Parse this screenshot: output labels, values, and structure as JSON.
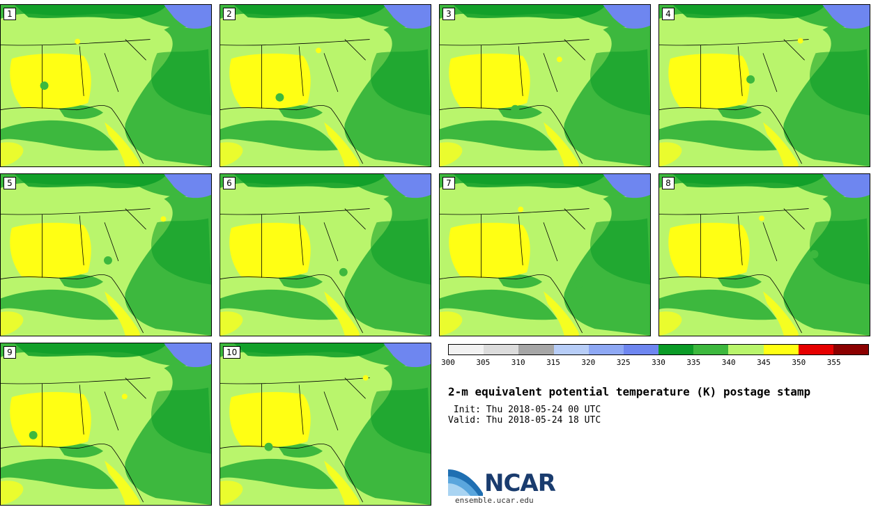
{
  "panels": [
    {
      "label": "1"
    },
    {
      "label": "2"
    },
    {
      "label": "3"
    },
    {
      "label": "4"
    },
    {
      "label": "5"
    },
    {
      "label": "6"
    },
    {
      "label": "7"
    },
    {
      "label": "8"
    },
    {
      "label": "9"
    },
    {
      "label": "10"
    }
  ],
  "legend": {
    "colors": [
      "#f2f2f2",
      "#dcdcdc",
      "#a6a6a6",
      "#b7cdf7",
      "#8ea8f4",
      "#6e86f0",
      "#0b9b27",
      "#3db83e",
      "#b9f56c",
      "#ffff14",
      "#e60000",
      "#8b0000"
    ],
    "ticks": [
      "300",
      "305",
      "310",
      "315",
      "320",
      "325",
      "330",
      "335",
      "340",
      "345",
      "350",
      "355"
    ]
  },
  "title": "2-m equivalent potential temperature (K) postage stamp",
  "init": " Init: Thu 2018-05-24 00 UTC",
  "valid": "Valid: Thu 2018-05-24 18 UTC",
  "logo": {
    "name": "NCAR",
    "url": "ensemble.ucar.edu"
  }
}
